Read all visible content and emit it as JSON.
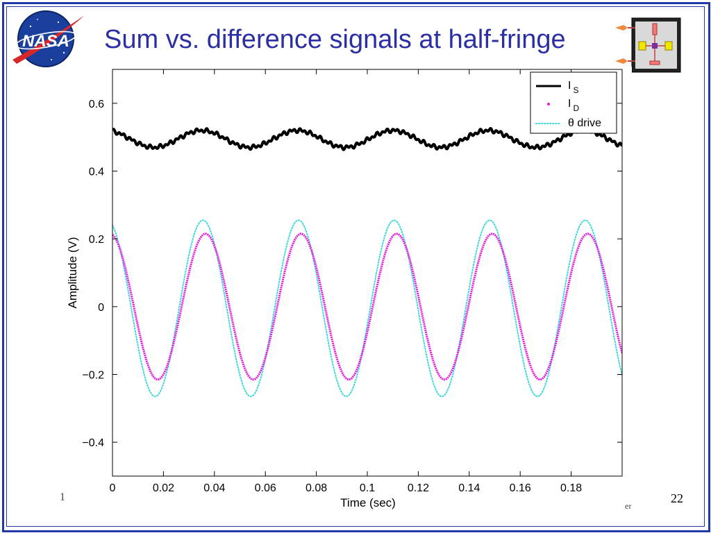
{
  "slide": {
    "title": "Sum vs. difference signals at half-fringe",
    "page_number": "22",
    "footer_fragment_left": "1",
    "footer_fragment_right": "er",
    "logo_text": "NASA",
    "colors": {
      "border": "#1f3aa8",
      "title": "#2c2fa3"
    },
    "icons": [
      "nasa-logo-icon",
      "interferometer-device-icon"
    ]
  },
  "chart_data": {
    "type": "line",
    "xlabel": "Time (sec)",
    "ylabel": "Amplitude (V)",
    "xlim": [
      0,
      0.2
    ],
    "ylim": [
      -0.5,
      0.7
    ],
    "x_ticks": [
      0,
      0.02,
      0.04,
      0.06,
      0.08,
      0.1,
      0.12,
      0.14,
      0.16,
      0.18
    ],
    "x_tick_labels": [
      "0",
      "0.02",
      "0.04",
      "0.06",
      "0.08",
      "0.1",
      "0.12",
      "0.14",
      "0.16",
      "0.18"
    ],
    "y_ticks": [
      0.6,
      0.4,
      0.2,
      0,
      -0.2,
      -0.4
    ],
    "y_tick_labels": [
      "0.6",
      "0.4",
      "0.2",
      "0",
      "−0.2",
      "−0.4"
    ],
    "grid": false,
    "legend_position": "top-right",
    "series": [
      {
        "name": "I_S",
        "legend_main": "I",
        "legend_sub": "S",
        "color": "#000000",
        "style": "solid",
        "width": 4,
        "model": {
          "offset": 0.495,
          "amplitude": 0.025,
          "period": 0.0375,
          "peak_time": 0.035
        }
      },
      {
        "name": "I_D",
        "legend_main": "I",
        "legend_sub": "D",
        "color": "#e51be0",
        "style": "dots",
        "width": 3,
        "model": {
          "offset": 0,
          "amplitude": 0.215,
          "period": 0.0375,
          "peak_time": 0.0365
        }
      },
      {
        "name": "θ drive",
        "legend_main": "θ drive",
        "legend_sub": "",
        "color": "#3fd8dc",
        "style": "dotted",
        "width": 2,
        "model": {
          "offset": -0.005,
          "amplitude": 0.26,
          "period": 0.0375,
          "peak_time": 0.0355
        }
      }
    ]
  }
}
